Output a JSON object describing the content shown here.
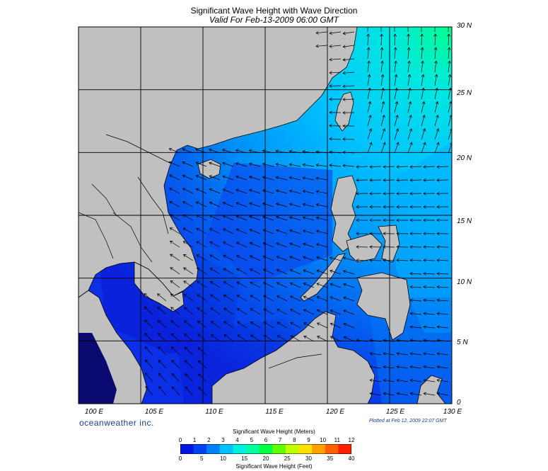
{
  "header": {
    "title": "Significant Wave Height with Wave Direction",
    "subtitle": "Valid For Feb-13-2009 06:00 GMT"
  },
  "map": {
    "lon_range": [
      100,
      130
    ],
    "lat_range": [
      0,
      30
    ],
    "lat_labels": [
      "0",
      "5 N",
      "10 N",
      "15 N",
      "20 N",
      "25 N",
      "30 N"
    ],
    "lon_labels": [
      "100 E",
      "105 E",
      "110 E",
      "115 E",
      "120 E",
      "125 E",
      "130 E"
    ],
    "land_color": "#c0c0c0",
    "coast_color": "#000000",
    "arrow_color": "#000000"
  },
  "footer": {
    "brand": "oceanweather inc.",
    "plotted": "Plotted at Feb 12, 2009 22:07 GMT"
  },
  "colorbar": {
    "title_meters": "Significant Wave Height (Meters)",
    "title_feet": "Significant Wave Height (Feet)",
    "meters_ticks": [
      "0",
      "1",
      "2",
      "3",
      "4",
      "5",
      "6",
      "7",
      "8",
      "9",
      "10",
      "11",
      "12"
    ],
    "feet_ticks": [
      "0",
      "5",
      "10",
      "15",
      "20",
      "25",
      "30",
      "35",
      "40"
    ],
    "colors": [
      "#0016e0",
      "#0044f0",
      "#0080f8",
      "#00c0ff",
      "#00f0e0",
      "#00ffa0",
      "#00ff40",
      "#60ff00",
      "#c0ff00",
      "#ffe000",
      "#ffa000",
      "#ff6000",
      "#ff2000"
    ]
  }
}
